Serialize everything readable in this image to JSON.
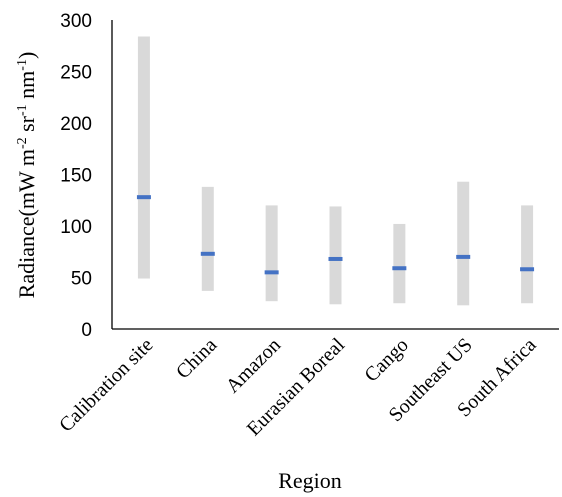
{
  "chart_data": {
    "type": "bar",
    "title": "",
    "xlabel": "Region",
    "ylabel_parts": {
      "main": "Radiance(mW m",
      "exp1": "-2",
      "mid1": " sr",
      "exp2": "-1",
      "mid2": " nm",
      "exp3": "-1",
      "end": ")"
    },
    "ylim": [
      0,
      300
    ],
    "yticks": [
      0,
      50,
      100,
      150,
      200,
      250,
      300
    ],
    "grid": false,
    "legend": "none",
    "categories": [
      "Calibration site",
      "China",
      "Amazon",
      "Eurasian Boreal",
      "Cango",
      "Southeast US",
      "South Africa"
    ],
    "series": [
      {
        "role": "range-min",
        "values": [
          49,
          37,
          27,
          24,
          25,
          23,
          25
        ]
      },
      {
        "role": "range-max",
        "values": [
          284,
          138,
          120,
          119,
          102,
          143,
          120
        ]
      },
      {
        "role": "central-marker",
        "values": [
          128,
          73,
          55,
          68,
          59,
          70,
          58
        ]
      }
    ],
    "colors": {
      "range": "#d9d9d9",
      "marker": "#4472c4",
      "axis": "#000000"
    }
  }
}
